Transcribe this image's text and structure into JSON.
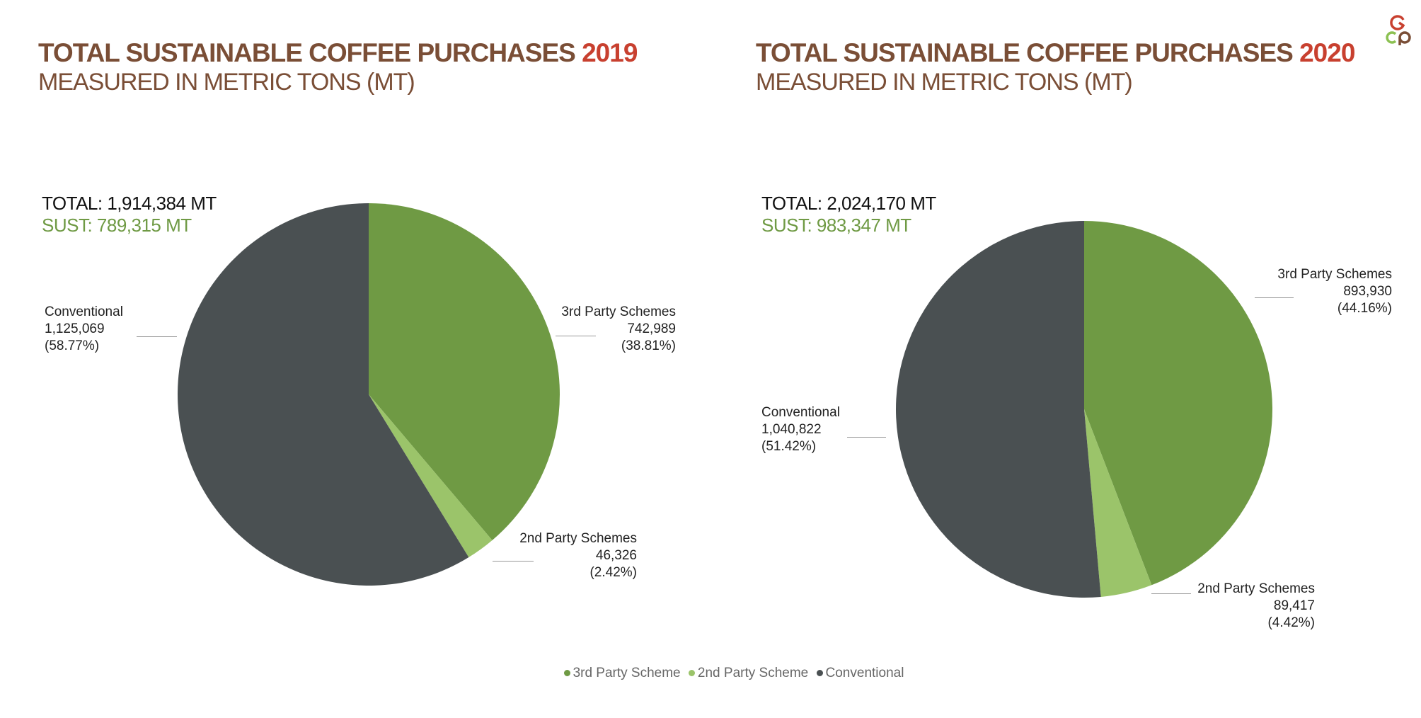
{
  "colors": {
    "third_party": "#6f9a44",
    "second_party": "#9bc46a",
    "conventional": "#4a5052",
    "title_brown": "#7a4e36",
    "year_red": "#c8402f"
  },
  "logo": {
    "text": "GCP"
  },
  "chart_data": [
    {
      "type": "pie",
      "title": "TOTAL SUSTAINABLE COFFEE PURCHASES",
      "title_year": "2019",
      "subtitle": "MEASURED IN METRIC TONS (MT)",
      "total_label": "TOTAL: 1,914,384 MT",
      "sust_label": "SUST: 789,315 MT",
      "start_angle": "top, clockwise",
      "slices": [
        {
          "name": "3rd Party Schemes",
          "value": 742989,
          "value_label": "742,989",
          "percent": 38.81,
          "percent_label": "(38.81%)",
          "color": "#6f9a44"
        },
        {
          "name": "2nd Party Schemes",
          "value": 46326,
          "value_label": "46,326",
          "percent": 2.42,
          "percent_label": "(2.42%)",
          "color": "#9bc46a"
        },
        {
          "name": "Conventional",
          "value": 1125069,
          "value_label": "1,125,069",
          "percent": 58.77,
          "percent_label": "(58.77%)",
          "color": "#4a5052"
        }
      ]
    },
    {
      "type": "pie",
      "title": "TOTAL SUSTAINABLE COFFEE PURCHASES",
      "title_year": "2020",
      "subtitle": "MEASURED IN METRIC TONS (MT)",
      "total_label": "TOTAL: 2,024,170 MT",
      "sust_label": "SUST: 983,347 MT",
      "start_angle": "top, clockwise",
      "slices": [
        {
          "name": "3rd Party Schemes",
          "value": 893930,
          "value_label": "893,930",
          "percent": 44.16,
          "percent_label": "(44.16%)",
          "color": "#6f9a44"
        },
        {
          "name": "2nd Party Schemes",
          "value": 89417,
          "value_label": "89,417",
          "percent": 4.42,
          "percent_label": "(4.42%)",
          "color": "#9bc46a"
        },
        {
          "name": "Conventional",
          "value": 1040822,
          "value_label": "1,040,822",
          "percent": 51.42,
          "percent_label": "(51.42%)",
          "color": "#4a5052"
        }
      ]
    }
  ],
  "legend": {
    "position": "bottom-center",
    "items": [
      {
        "label": "3rd Party Scheme",
        "color": "#6f9a44"
      },
      {
        "label": "2nd Party Scheme",
        "color": "#9bc46a"
      },
      {
        "label": "Conventional",
        "color": "#4a5052"
      }
    ]
  }
}
